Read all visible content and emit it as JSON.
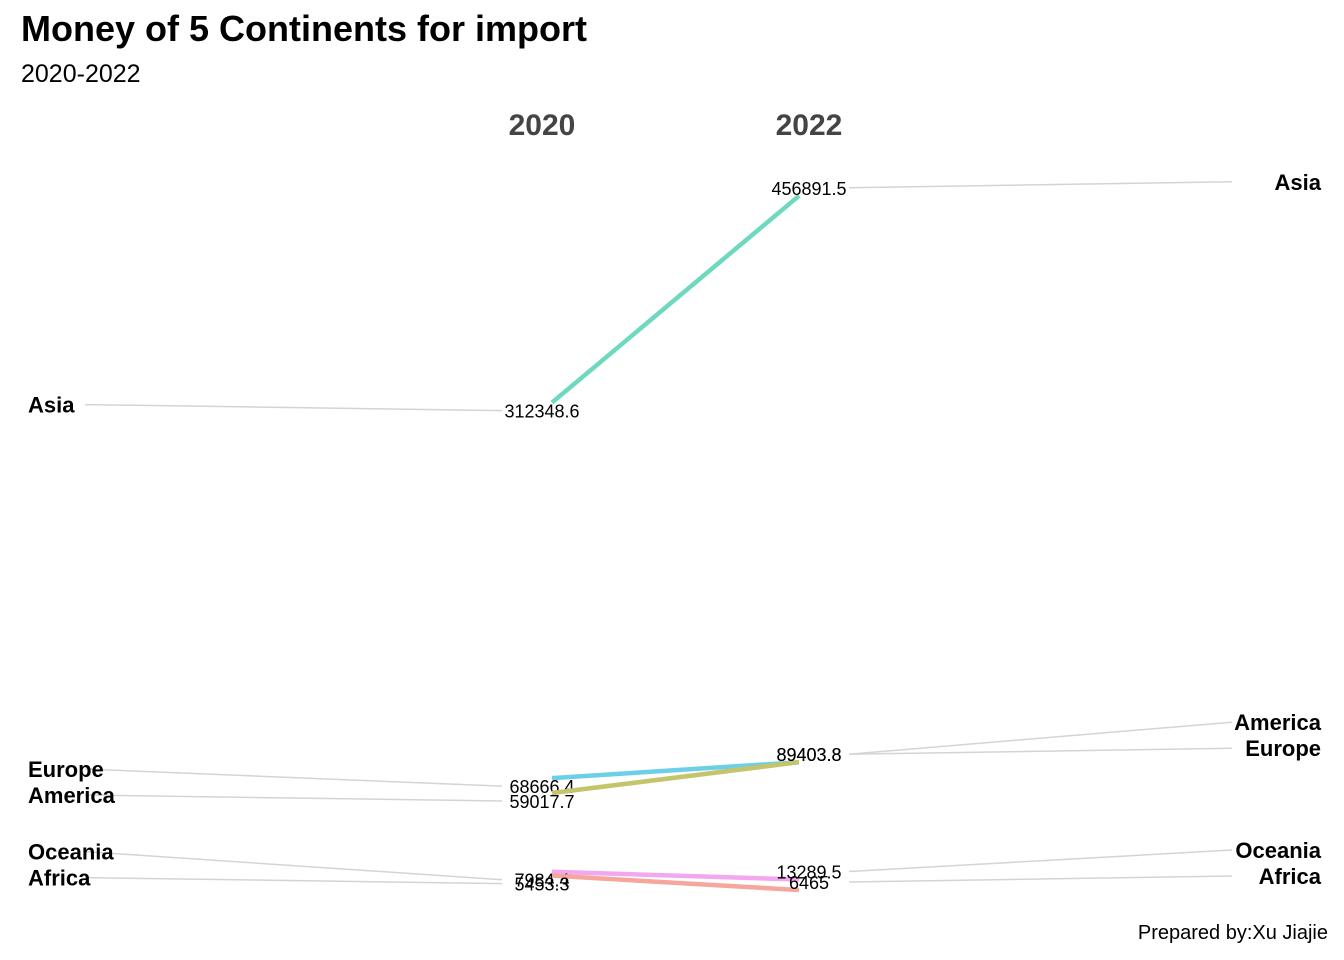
{
  "title": "Money of 5 Continents for import",
  "subtitle": "2020-2022",
  "caption": "Prepared by:Xu Jiajie",
  "chart_data": {
    "type": "line",
    "title": "Money of 5 Continents for import",
    "subtitle": "2020-2022",
    "x": [
      "2020",
      "2022"
    ],
    "ylim": [
      0,
      460000
    ],
    "grid": false,
    "legend": "none",
    "series": [
      {
        "name": "Asia",
        "values": [
          312348.6,
          456891.5
        ],
        "value_labels": [
          "312348.6",
          "456891.5"
        ],
        "color": "#6fd9bf"
      },
      {
        "name": "Europe",
        "values": [
          68666.4,
          89403.8
        ],
        "value_labels": [
          "68666.4",
          "89403.8"
        ],
        "color": "#6ccfe8"
      },
      {
        "name": "America",
        "values": [
          59017.7,
          89403.8
        ],
        "value_labels": [
          "59017.7",
          "89403.8"
        ],
        "color": "#c4c46a"
      },
      {
        "name": "Oceania",
        "values": [
          7984.4,
          13289.5
        ],
        "value_labels": [
          "7984.4",
          "13289.5"
        ],
        "color": "#f2a7ee"
      },
      {
        "name": "Africa",
        "values": [
          5453.3,
          6465
        ],
        "value_labels": [
          "5453.3",
          "6465"
        ],
        "color": "#f5a79e"
      }
    ]
  }
}
